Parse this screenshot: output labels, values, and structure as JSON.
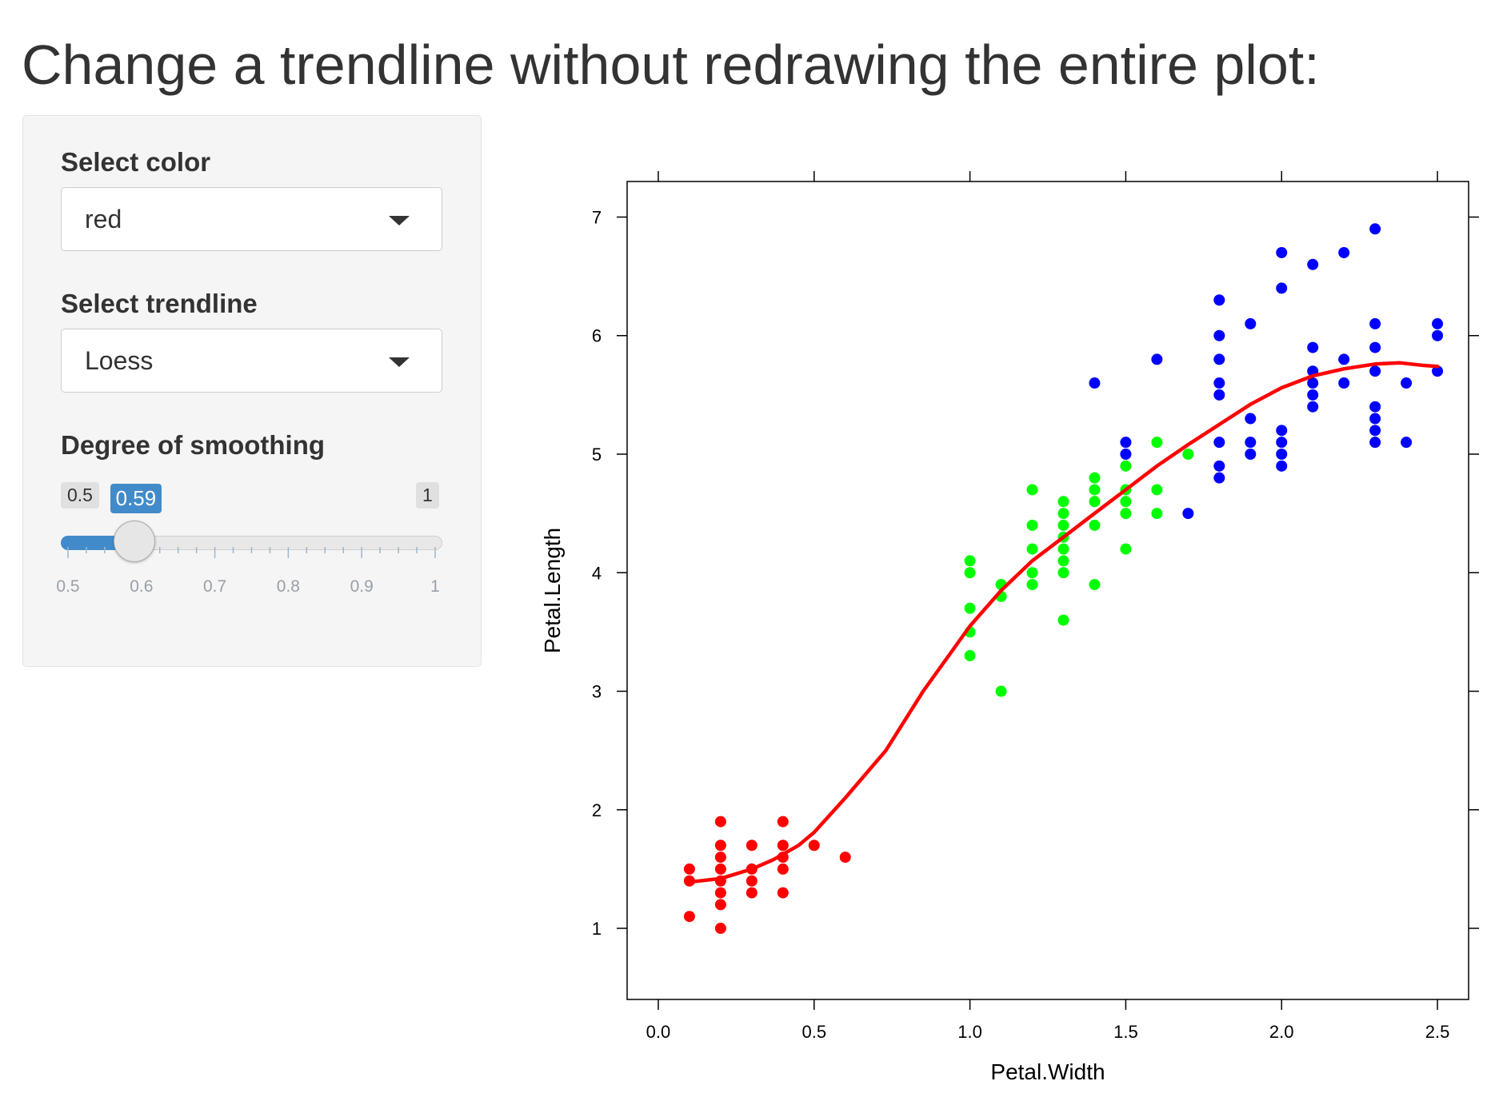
{
  "page": {
    "title": "Change a trendline without redrawing the entire plot:"
  },
  "sidebar": {
    "color_select": {
      "label": "Select color",
      "value": "red"
    },
    "trendline_select": {
      "label": "Select trendline",
      "value": "Loess"
    },
    "smoothing_slider": {
      "label": "Degree of smoothing",
      "min": 0.5,
      "max": 1,
      "value": 0.59,
      "min_label": "0.5",
      "max_label": "1",
      "value_label": "0.59",
      "grid_labels": [
        "0.5",
        "0.6",
        "0.7",
        "0.8",
        "0.9",
        "1"
      ]
    }
  },
  "colors": {
    "accent": "#428bca",
    "setosa": "#ff0000",
    "versicolor": "#00ff00",
    "virginica": "#0000ff",
    "trendline": "#ff0000"
  },
  "chart_data": {
    "type": "scatter",
    "title": "",
    "xlabel": "Petal.Width",
    "ylabel": "Petal.Length",
    "xlim": [
      -0.1,
      2.6
    ],
    "ylim": [
      0.4,
      7.3
    ],
    "xticks": [
      "0.0",
      "0.5",
      "1.0",
      "1.5",
      "2.0",
      "2.5"
    ],
    "yticks": [
      "1",
      "2",
      "3",
      "4",
      "5",
      "6",
      "7"
    ],
    "grid": false,
    "legend": "none",
    "series": [
      {
        "color": "#ff0000",
        "points": [
          [
            0.1,
            1.5
          ],
          [
            0.1,
            1.4
          ],
          [
            0.1,
            1.1
          ],
          [
            0.2,
            1.9
          ],
          [
            0.2,
            1.7
          ],
          [
            0.2,
            1.6
          ],
          [
            0.2,
            1.5
          ],
          [
            0.2,
            1.4
          ],
          [
            0.2,
            1.3
          ],
          [
            0.2,
            1.2
          ],
          [
            0.2,
            1.0
          ],
          [
            0.3,
            1.7
          ],
          [
            0.3,
            1.5
          ],
          [
            0.3,
            1.4
          ],
          [
            0.3,
            1.3
          ],
          [
            0.4,
            1.9
          ],
          [
            0.4,
            1.7
          ],
          [
            0.4,
            1.6
          ],
          [
            0.4,
            1.5
          ],
          [
            0.4,
            1.3
          ],
          [
            0.5,
            1.7
          ],
          [
            0.6,
            1.6
          ]
        ]
      },
      {
        "color": "#00ff00",
        "points": [
          [
            1.0,
            4.1
          ],
          [
            1.0,
            4.0
          ],
          [
            1.0,
            3.7
          ],
          [
            1.0,
            3.5
          ],
          [
            1.0,
            3.3
          ],
          [
            1.1,
            3.9
          ],
          [
            1.1,
            3.8
          ],
          [
            1.1,
            3.0
          ],
          [
            1.2,
            4.7
          ],
          [
            1.2,
            4.4
          ],
          [
            1.2,
            4.2
          ],
          [
            1.2,
            4.0
          ],
          [
            1.2,
            3.9
          ],
          [
            1.3,
            4.6
          ],
          [
            1.3,
            4.5
          ],
          [
            1.3,
            4.4
          ],
          [
            1.3,
            4.3
          ],
          [
            1.3,
            4.2
          ],
          [
            1.3,
            4.1
          ],
          [
            1.3,
            4.0
          ],
          [
            1.3,
            3.6
          ],
          [
            1.4,
            4.8
          ],
          [
            1.4,
            4.7
          ],
          [
            1.4,
            4.6
          ],
          [
            1.4,
            4.4
          ],
          [
            1.4,
            3.9
          ],
          [
            1.5,
            4.9
          ],
          [
            1.5,
            4.7
          ],
          [
            1.5,
            4.6
          ],
          [
            1.5,
            4.5
          ],
          [
            1.5,
            4.2
          ],
          [
            1.6,
            5.1
          ],
          [
            1.6,
            4.7
          ],
          [
            1.6,
            4.5
          ],
          [
            1.7,
            5.0
          ]
        ]
      },
      {
        "color": "#0000ff",
        "points": [
          [
            1.4,
            5.6
          ],
          [
            1.5,
            5.1
          ],
          [
            1.5,
            5.0
          ],
          [
            1.6,
            5.8
          ],
          [
            1.7,
            4.5
          ],
          [
            1.8,
            6.3
          ],
          [
            1.8,
            6.0
          ],
          [
            1.8,
            5.8
          ],
          [
            1.8,
            5.6
          ],
          [
            1.8,
            5.5
          ],
          [
            1.8,
            5.1
          ],
          [
            1.8,
            4.9
          ],
          [
            1.8,
            4.8
          ],
          [
            1.9,
            6.1
          ],
          [
            1.9,
            5.3
          ],
          [
            1.9,
            5.1
          ],
          [
            1.9,
            5.0
          ],
          [
            2.0,
            6.7
          ],
          [
            2.0,
            6.4
          ],
          [
            2.0,
            5.2
          ],
          [
            2.0,
            5.1
          ],
          [
            2.0,
            5.0
          ],
          [
            2.0,
            4.9
          ],
          [
            2.1,
            6.6
          ],
          [
            2.1,
            5.9
          ],
          [
            2.1,
            5.7
          ],
          [
            2.1,
            5.6
          ],
          [
            2.1,
            5.5
          ],
          [
            2.1,
            5.4
          ],
          [
            2.2,
            6.7
          ],
          [
            2.2,
            5.8
          ],
          [
            2.2,
            5.6
          ],
          [
            2.3,
            6.9
          ],
          [
            2.3,
            6.1
          ],
          [
            2.3,
            5.9
          ],
          [
            2.3,
            5.7
          ],
          [
            2.3,
            5.4
          ],
          [
            2.3,
            5.3
          ],
          [
            2.3,
            5.2
          ],
          [
            2.3,
            5.1
          ],
          [
            2.4,
            5.6
          ],
          [
            2.4,
            5.1
          ],
          [
            2.5,
            6.1
          ],
          [
            2.5,
            6.0
          ],
          [
            2.5,
            5.7
          ]
        ]
      }
    ],
    "trendline": {
      "color": "#ff0000",
      "points": [
        [
          0.1,
          1.39
        ],
        [
          0.2,
          1.42
        ],
        [
          0.3,
          1.5
        ],
        [
          0.37,
          1.58
        ],
        [
          0.45,
          1.7
        ],
        [
          0.5,
          1.81
        ],
        [
          0.6,
          2.1
        ],
        [
          0.73,
          2.5
        ],
        [
          0.85,
          3.0
        ],
        [
          1.0,
          3.55
        ],
        [
          1.1,
          3.85
        ],
        [
          1.2,
          4.1
        ],
        [
          1.3,
          4.3
        ],
        [
          1.4,
          4.5
        ],
        [
          1.5,
          4.7
        ],
        [
          1.6,
          4.9
        ],
        [
          1.7,
          5.08
        ],
        [
          1.8,
          5.25
        ],
        [
          1.9,
          5.42
        ],
        [
          2.0,
          5.56
        ],
        [
          2.1,
          5.66
        ],
        [
          2.2,
          5.72
        ],
        [
          2.3,
          5.76
        ],
        [
          2.38,
          5.77
        ],
        [
          2.45,
          5.75
        ],
        [
          2.5,
          5.74
        ]
      ]
    }
  }
}
